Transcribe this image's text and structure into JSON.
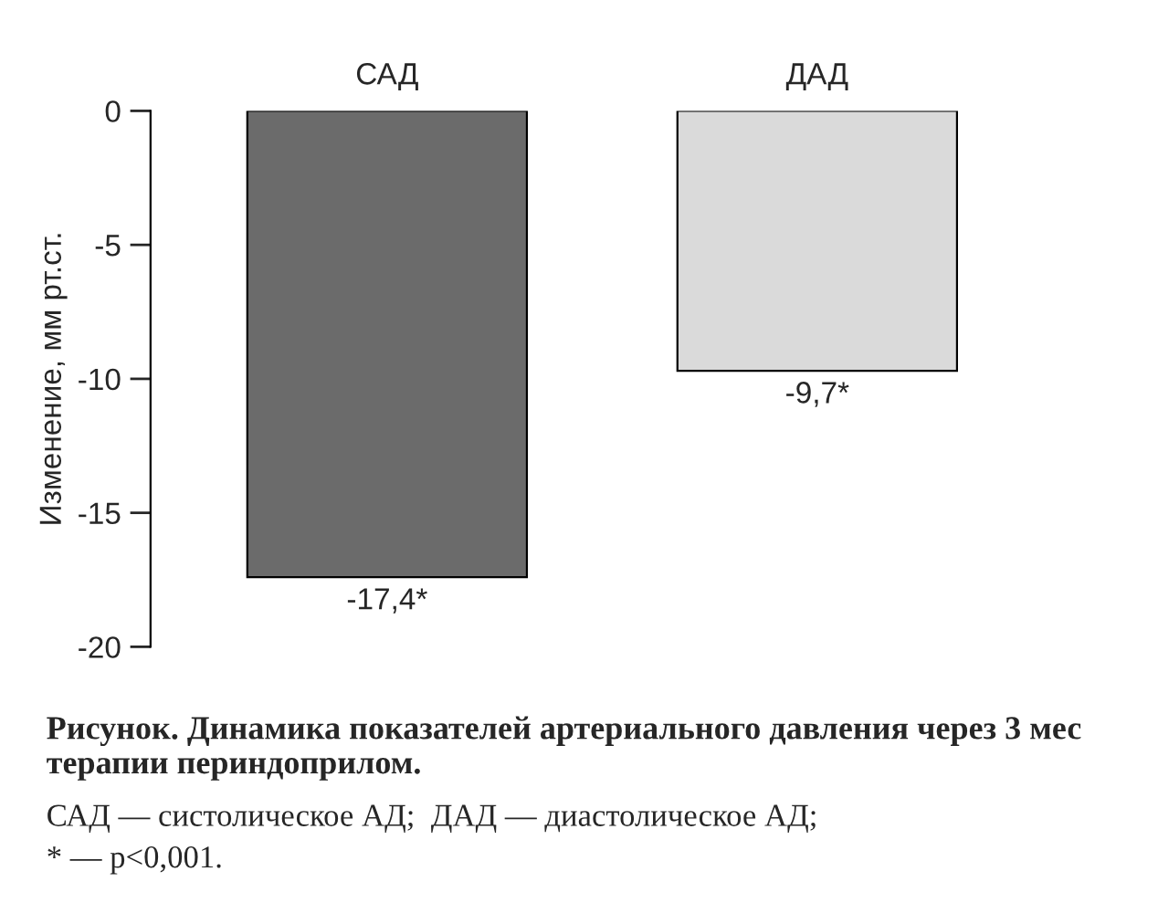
{
  "chart_data": {
    "type": "bar",
    "title": "Рисунок. Динамика показателей артериального давления через 3 мес терапии периндоприлом.",
    "ylabel": "Изменение, мм рт.ст.",
    "categories": [
      "САД",
      "ДАД"
    ],
    "values": [
      -17.4,
      -9.7
    ],
    "colors": [
      "#6b6b6b",
      "#dadada"
    ],
    "value_labels": [
      "-17,4*",
      "-9,7*"
    ],
    "ylim": [
      -20,
      0
    ],
    "yticks": [
      0,
      -5,
      -10,
      -15,
      -20
    ],
    "grid": false,
    "annotations": [
      "САД — систолическое АД;  ДАД — диастолическое АД;",
      "* — p<0,001."
    ]
  }
}
